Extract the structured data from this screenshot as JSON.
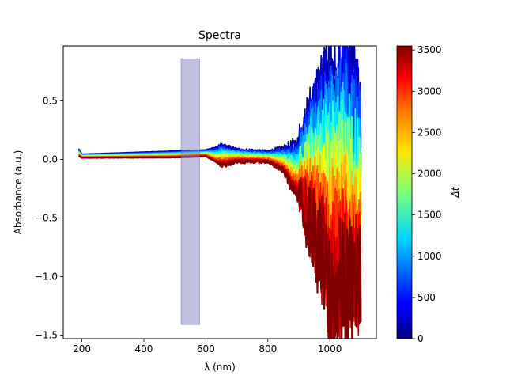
{
  "chart_data": {
    "type": "line",
    "title": "Spectra",
    "xlabel": "λ (nm)",
    "ylabel": "Absorbance (a.u.)",
    "xlim": [
      140,
      1150
    ],
    "ylim": [
      -1.53,
      0.97
    ],
    "x_ticks": [
      200,
      400,
      600,
      800,
      1000
    ],
    "y_ticks": [
      0.5,
      0.0,
      -0.5,
      -1.0,
      -1.5
    ],
    "x_tick_labels": [
      "200",
      "400",
      "600",
      "800",
      "1000"
    ],
    "y_tick_labels": [
      "0.5",
      "0.0",
      "−0.5",
      "−1.0",
      "−1.5"
    ],
    "x_range_nm": [
      190,
      1100
    ],
    "grid": false,
    "highlight_band": {
      "x": [
        520,
        580
      ],
      "y": [
        -1.41,
        0.86
      ],
      "color": "#7f7fbf",
      "opacity": 0.5
    },
    "colormap": "jet",
    "colorbar": {
      "label": "Δt",
      "range": [
        0,
        3550
      ],
      "ticks": [
        0,
        500,
        1000,
        1500,
        2000,
        2500,
        3000,
        3500
      ],
      "tick_labels": [
        "0",
        "500",
        "1000",
        "1500",
        "2000",
        "2500",
        "3000",
        "3500"
      ]
    },
    "series_count": 24,
    "series_dt_range": [
      0,
      3550
    ],
    "envelope": {
      "x": [
        190,
        200,
        300,
        400,
        500,
        600,
        650,
        700,
        800,
        850,
        900,
        950,
        1000,
        1050,
        1100
      ],
      "y_upper": [
        0.1,
        0.05,
        0.06,
        0.07,
        0.08,
        0.09,
        0.14,
        0.1,
        0.08,
        0.12,
        0.2,
        0.55,
        0.78,
        0.85,
        0.55
      ],
      "y_lower": [
        0.02,
        0.01,
        0.01,
        0.01,
        0.01,
        0.02,
        -0.07,
        -0.03,
        -0.03,
        -0.12,
        -0.4,
        -0.75,
        -1.4,
        -1.35,
        -1.25
      ]
    }
  }
}
